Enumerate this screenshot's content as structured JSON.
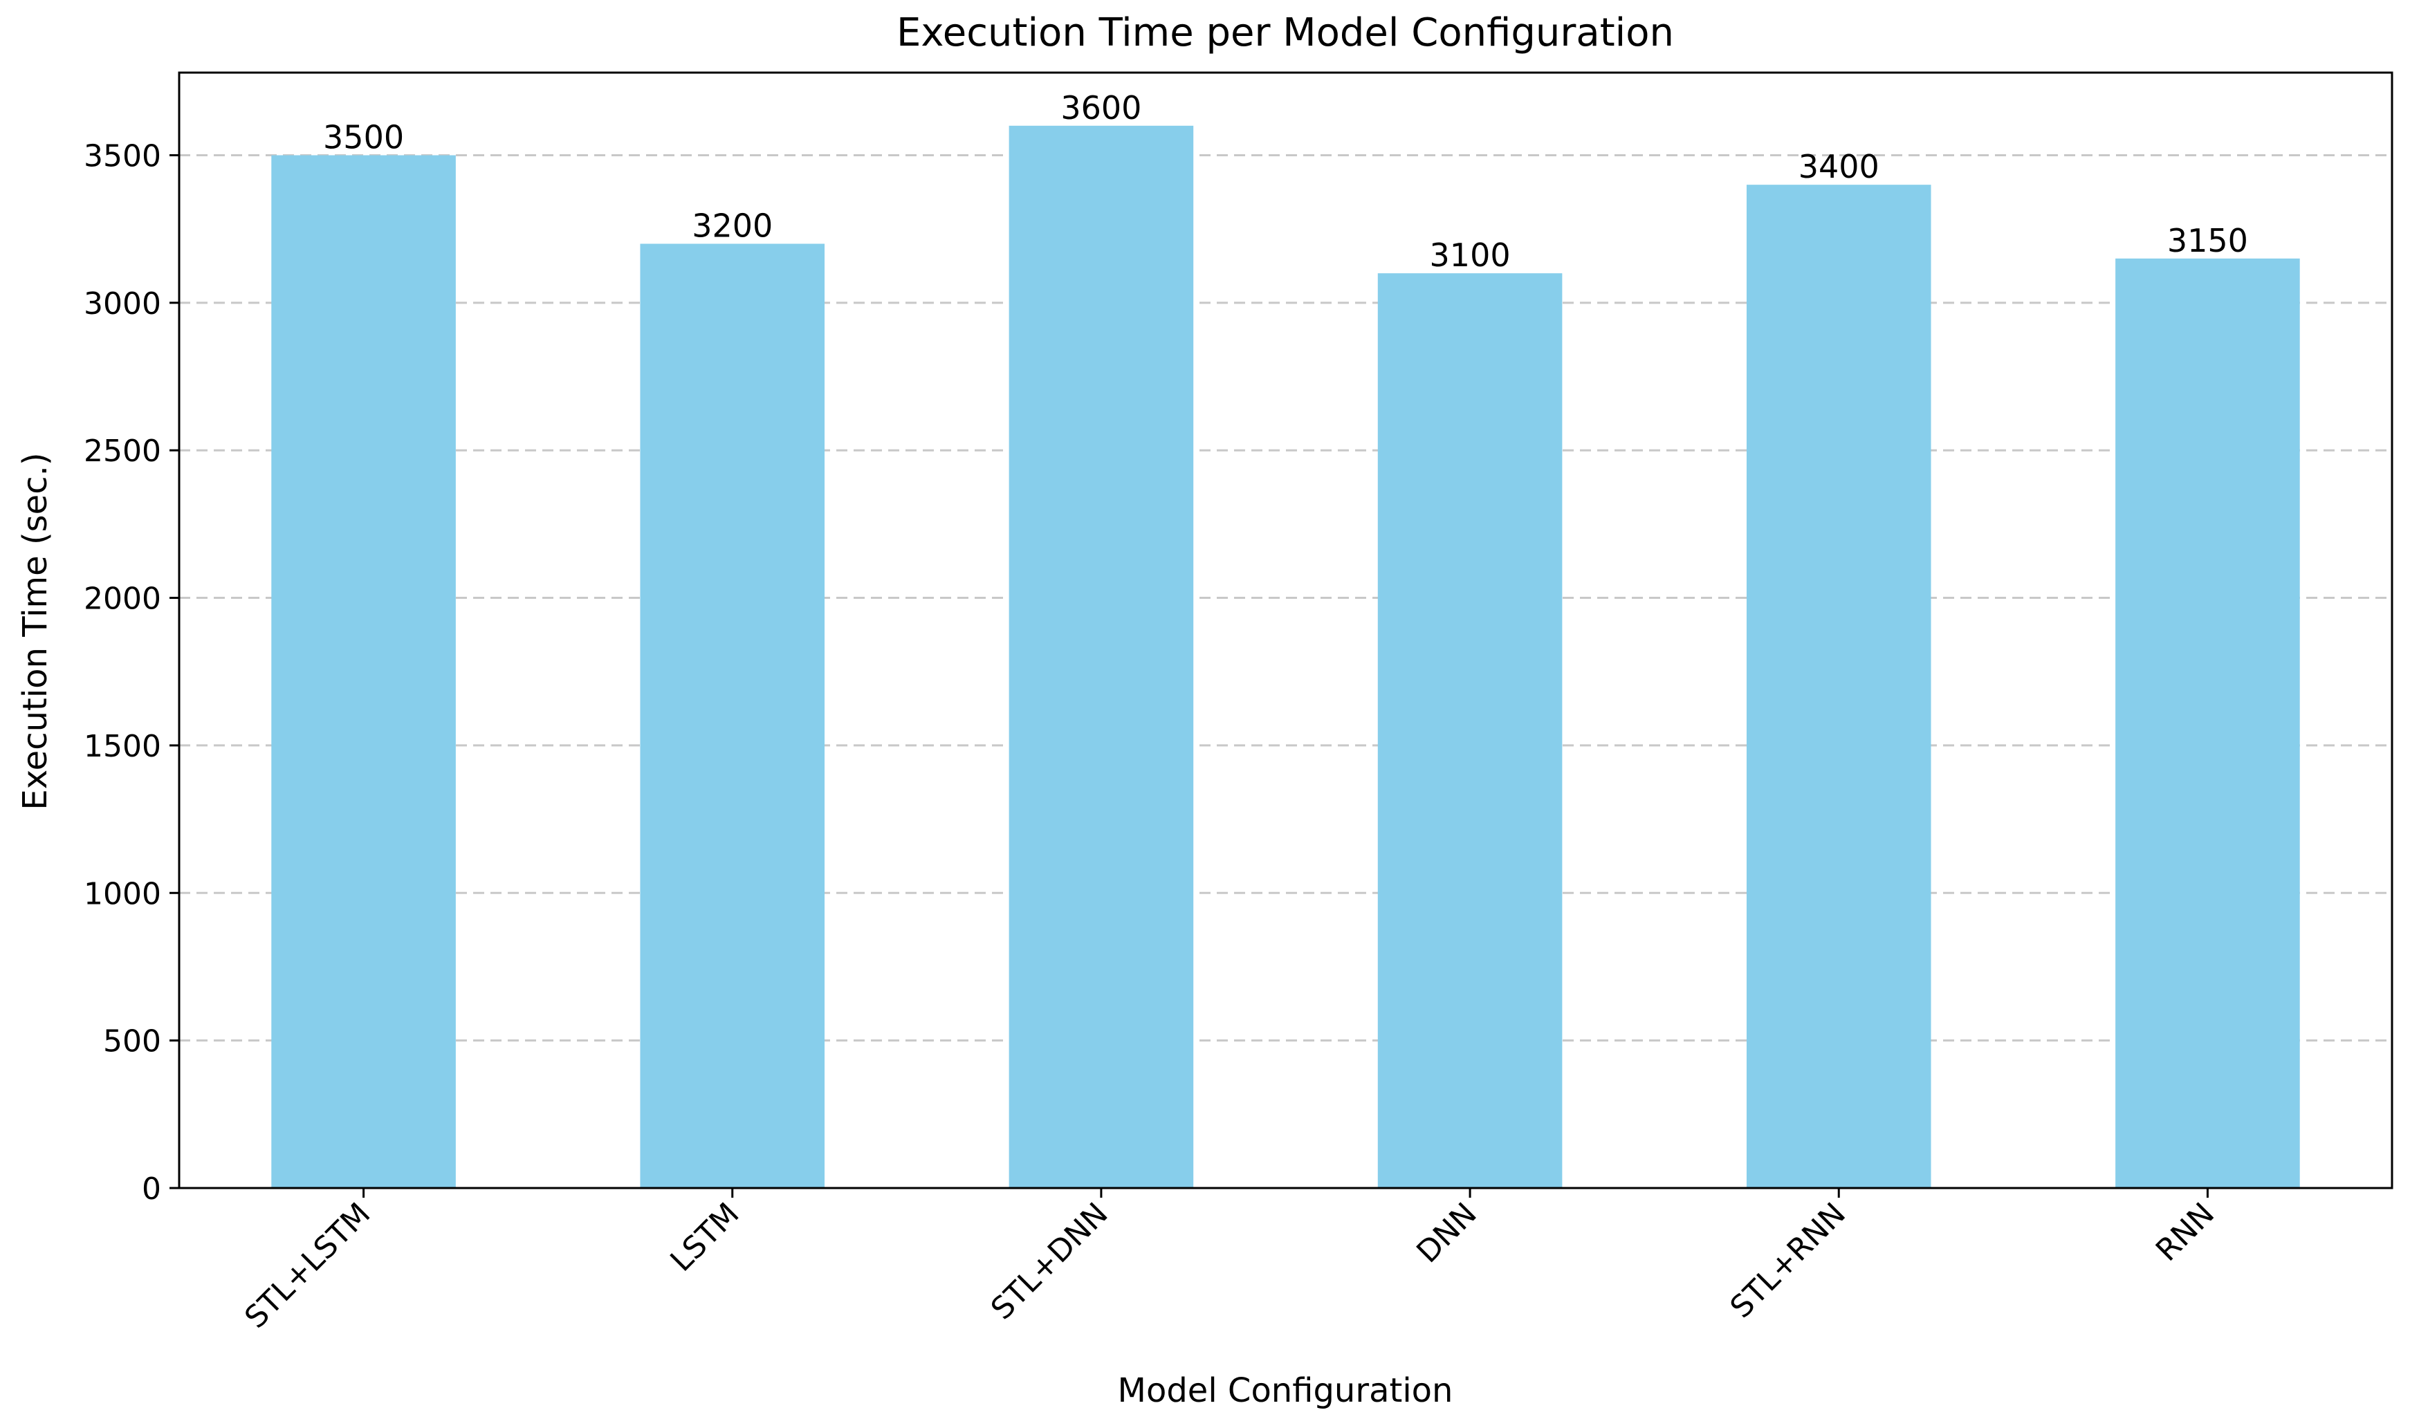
{
  "chart_data": {
    "type": "bar",
    "title": "Execution Time per Model Configuration",
    "xlabel": "Model Configuration",
    "ylabel": "Execution Time (sec.)",
    "categories": [
      "STL+LSTM",
      "LSTM",
      "STL+DNN",
      "DNN",
      "STL+RNN",
      "RNN"
    ],
    "values": [
      3500,
      3200,
      3600,
      3100,
      3400,
      3150
    ],
    "data_labels": [
      "3500",
      "3200",
      "3600",
      "3100",
      "3400",
      "3150"
    ],
    "ylim": [
      0,
      3780
    ],
    "yticks": [
      0,
      500,
      1000,
      1500,
      2000,
      2500,
      3000,
      3500
    ],
    "ytick_labels": [
      "0",
      "500",
      "1000",
      "1500",
      "2000",
      "2500",
      "3000",
      "3500"
    ],
    "grid": "y-dashed",
    "legend": "none",
    "colors": {
      "bar": "#87CEEB",
      "grid": "#c8c8c8",
      "axis": "#000000",
      "text": "#000000"
    }
  }
}
